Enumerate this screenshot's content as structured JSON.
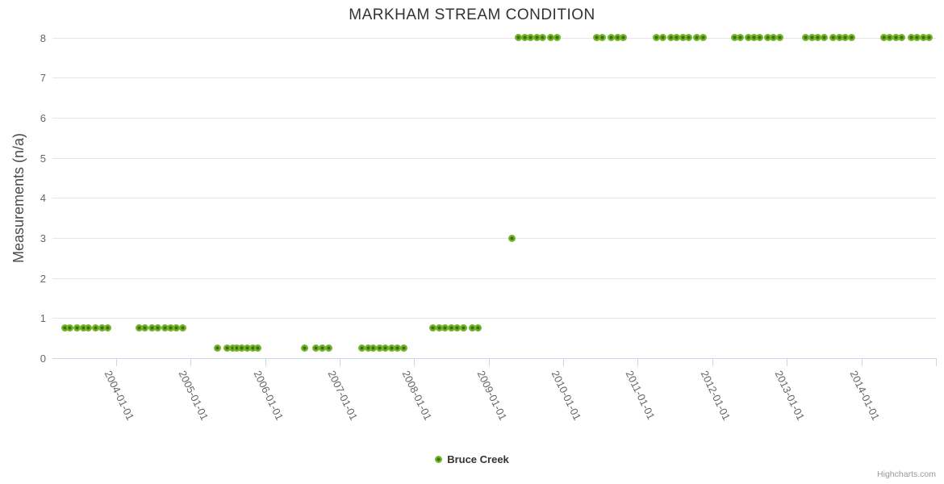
{
  "credits": "Highcharts.com",
  "chart_data": {
    "type": "scatter",
    "title": "MARKHAM STREAM CONDITION",
    "xlabel": "",
    "ylabel": "Measurements (n/a)",
    "ylim": [
      0,
      8
    ],
    "y_ticks": [
      0,
      1,
      2,
      3,
      4,
      5,
      6,
      7,
      8
    ],
    "x_tick_labels": [
      "2004-01-01",
      "2005-01-01",
      "2006-01-01",
      "2007-01-01",
      "2008-01-01",
      "2009-01-01",
      "2010-01-01",
      "2011-01-01",
      "2012-01-01",
      "2013-01-01",
      "2014-01-01"
    ],
    "x_axis_end": "2015-01-01",
    "grid": "horizontal-only",
    "legend_position": "bottom-center",
    "colors": {
      "grid": "#e6e6e6",
      "axis_line": "#ccd6eb",
      "axis_label": "#666666",
      "title": "#333333",
      "marker_outer": "#74B42C",
      "marker_center": "#3E7000"
    },
    "series": [
      {
        "name": "Bruce Creek",
        "marker_color": "#74B42C",
        "marker_center_color": "#3E7000",
        "points": [
          {
            "date": "2003-04-26",
            "value": 0.75
          },
          {
            "date": "2003-05-20",
            "value": 0.75
          },
          {
            "date": "2003-06-24",
            "value": 0.75
          },
          {
            "date": "2003-07-26",
            "value": 0.75
          },
          {
            "date": "2003-08-19",
            "value": 0.75
          },
          {
            "date": "2003-09-23",
            "value": 0.75
          },
          {
            "date": "2003-10-25",
            "value": 0.75
          },
          {
            "date": "2003-11-21",
            "value": 0.75
          },
          {
            "date": "2004-04-24",
            "value": 0.75
          },
          {
            "date": "2004-05-22",
            "value": 0.75
          },
          {
            "date": "2004-06-27",
            "value": 0.75
          },
          {
            "date": "2004-07-24",
            "value": 0.75
          },
          {
            "date": "2004-08-29",
            "value": 0.75
          },
          {
            "date": "2004-09-26",
            "value": 0.75
          },
          {
            "date": "2004-10-23",
            "value": 0.75
          },
          {
            "date": "2004-11-24",
            "value": 0.75
          },
          {
            "date": "2005-05-13",
            "value": 0.25
          },
          {
            "date": "2005-06-29",
            "value": 0.25
          },
          {
            "date": "2005-07-27",
            "value": 0.25
          },
          {
            "date": "2005-08-16",
            "value": 0.25
          },
          {
            "date": "2005-09-08",
            "value": 0.25
          },
          {
            "date": "2005-10-06",
            "value": 0.25
          },
          {
            "date": "2005-11-03",
            "value": 0.25
          },
          {
            "date": "2005-11-27",
            "value": 0.25
          },
          {
            "date": "2006-07-14",
            "value": 0.25
          },
          {
            "date": "2006-09-07",
            "value": 0.25
          },
          {
            "date": "2006-10-09",
            "value": 0.25
          },
          {
            "date": "2006-11-09",
            "value": 0.25
          },
          {
            "date": "2007-04-20",
            "value": 0.25
          },
          {
            "date": "2007-05-22",
            "value": 0.25
          },
          {
            "date": "2007-06-15",
            "value": 0.25
          },
          {
            "date": "2007-07-16",
            "value": 0.25
          },
          {
            "date": "2007-08-13",
            "value": 0.25
          },
          {
            "date": "2007-09-14",
            "value": 0.25
          },
          {
            "date": "2007-10-11",
            "value": 0.25
          },
          {
            "date": "2007-11-12",
            "value": 0.25
          },
          {
            "date": "2008-04-03",
            "value": 0.75
          },
          {
            "date": "2008-05-05",
            "value": 0.75
          },
          {
            "date": "2008-06-02",
            "value": 0.75
          },
          {
            "date": "2008-07-03",
            "value": 0.75
          },
          {
            "date": "2008-07-31",
            "value": 0.75
          },
          {
            "date": "2008-08-31",
            "value": 0.75
          },
          {
            "date": "2008-10-14",
            "value": 0.75
          },
          {
            "date": "2008-11-11",
            "value": 0.75
          },
          {
            "date": "2009-04-26",
            "value": 3
          },
          {
            "date": "2009-05-27",
            "value": 8
          },
          {
            "date": "2009-06-28",
            "value": 8
          },
          {
            "date": "2009-07-26",
            "value": 8
          },
          {
            "date": "2009-08-26",
            "value": 8
          },
          {
            "date": "2009-09-23",
            "value": 8
          },
          {
            "date": "2009-11-01",
            "value": 8
          },
          {
            "date": "2009-12-03",
            "value": 8
          },
          {
            "date": "2010-06-15",
            "value": 8
          },
          {
            "date": "2010-07-12",
            "value": 8
          },
          {
            "date": "2010-08-25",
            "value": 8
          },
          {
            "date": "2010-09-25",
            "value": 8
          },
          {
            "date": "2010-10-23",
            "value": 8
          },
          {
            "date": "2011-04-03",
            "value": 8
          },
          {
            "date": "2011-05-04",
            "value": 8
          },
          {
            "date": "2011-06-13",
            "value": 8
          },
          {
            "date": "2011-07-11",
            "value": 8
          },
          {
            "date": "2011-08-11",
            "value": 8
          },
          {
            "date": "2011-09-08",
            "value": 8
          },
          {
            "date": "2011-10-17",
            "value": 8
          },
          {
            "date": "2011-11-18",
            "value": 8
          },
          {
            "date": "2012-04-20",
            "value": 8
          },
          {
            "date": "2012-05-18",
            "value": 8
          },
          {
            "date": "2012-06-27",
            "value": 8
          },
          {
            "date": "2012-07-25",
            "value": 8
          },
          {
            "date": "2012-08-21",
            "value": 8
          },
          {
            "date": "2012-09-30",
            "value": 8
          },
          {
            "date": "2012-10-27",
            "value": 8
          },
          {
            "date": "2012-11-28",
            "value": 8
          },
          {
            "date": "2013-04-04",
            "value": 8
          },
          {
            "date": "2013-05-06",
            "value": 8
          },
          {
            "date": "2013-06-02",
            "value": 8
          },
          {
            "date": "2013-07-04",
            "value": 8
          },
          {
            "date": "2013-08-16",
            "value": 8
          },
          {
            "date": "2013-09-17",
            "value": 8
          },
          {
            "date": "2013-10-15",
            "value": 8
          },
          {
            "date": "2013-11-15",
            "value": 8
          },
          {
            "date": "2014-04-22",
            "value": 8
          },
          {
            "date": "2014-05-20",
            "value": 8
          },
          {
            "date": "2014-06-21",
            "value": 8
          },
          {
            "date": "2014-07-18",
            "value": 8
          },
          {
            "date": "2014-09-04",
            "value": 8
          },
          {
            "date": "2014-10-01",
            "value": 8
          },
          {
            "date": "2014-11-02",
            "value": 8
          },
          {
            "date": "2014-11-30",
            "value": 8
          }
        ]
      }
    ]
  }
}
